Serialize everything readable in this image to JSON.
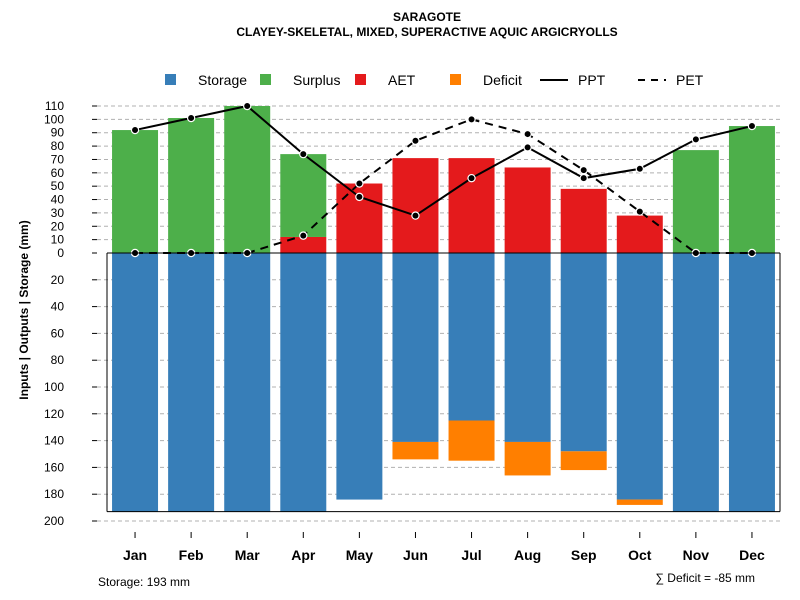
{
  "chart_data": {
    "type": "bar",
    "title": "SARAGOTE",
    "subtitle": "CLAYEY-SKELETAL, MIXED, SUPERACTIVE AQUIC ARGICRYOLLS",
    "ylabel": "Inputs | Outputs | Storage     (mm)",
    "categories": [
      "Jan",
      "Feb",
      "Mar",
      "Apr",
      "May",
      "Jun",
      "Jul",
      "Aug",
      "Sep",
      "Oct",
      "Nov",
      "Dec"
    ],
    "legend": [
      "Storage",
      "Surplus",
      "AET",
      "Deficit",
      "PPT",
      "PET"
    ],
    "colors": {
      "storage": "#377EB8",
      "surplus": "#4DAF4A",
      "aet": "#E41A1C",
      "deficit": "#FF7F00",
      "line": "#000000",
      "grid": "#b0b0b0"
    },
    "ylim_top": [
      0,
      110
    ],
    "ylim_bottom": [
      0,
      200
    ],
    "yticks_top": [
      "0",
      "10",
      "20",
      "30",
      "40",
      "50",
      "60",
      "70",
      "80",
      "90",
      "100",
      "110"
    ],
    "yticks_bottom": [
      "20",
      "40",
      "60",
      "80",
      "100",
      "120",
      "140",
      "160",
      "180",
      "200"
    ],
    "series": {
      "surplus": [
        92,
        101,
        110,
        62,
        0,
        0,
        0,
        0,
        0,
        0,
        77,
        95
      ],
      "aet": [
        0,
        0,
        0,
        12,
        52,
        71,
        71,
        64,
        48,
        28,
        0,
        0
      ],
      "storage": [
        193,
        193,
        193,
        193,
        184,
        141,
        125,
        141,
        148,
        184,
        193,
        193
      ],
      "deficit": [
        0,
        0,
        0,
        0,
        0,
        13,
        30,
        25,
        14,
        4,
        0,
        0
      ],
      "ppt": [
        92,
        101,
        110,
        74,
        42,
        28,
        56,
        79,
        56,
        63,
        85,
        95
      ],
      "pet": [
        0,
        0,
        0,
        13,
        52,
        84,
        100,
        89,
        62,
        31,
        0,
        0
      ]
    },
    "storage_label": "Storage: 193 mm",
    "deficit_label": "∑ Deficit = -85 mm"
  }
}
